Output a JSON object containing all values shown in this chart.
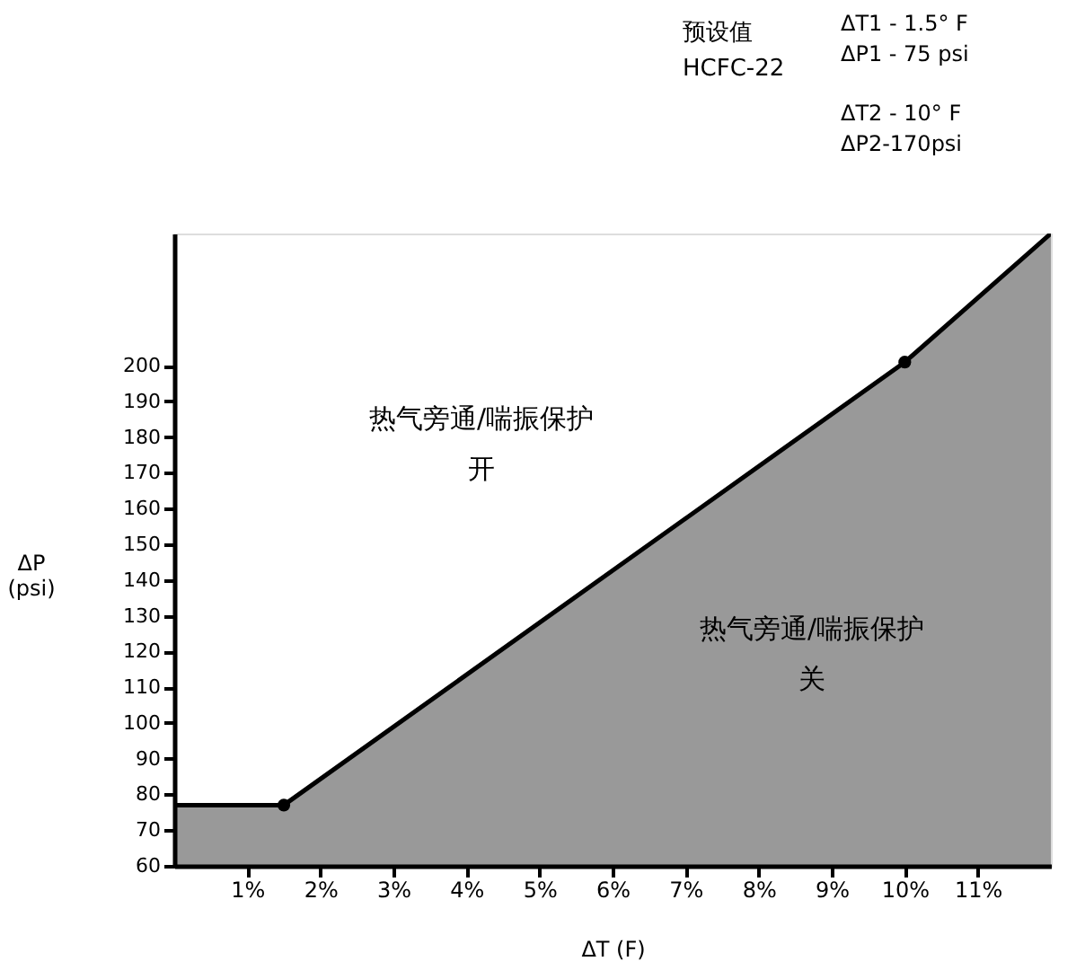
{
  "chart_data": {
    "type": "area",
    "xlabel": "ΔT (F)",
    "ylabel": "ΔP\n(psi)",
    "x": [
      0,
      1.5,
      10,
      12
    ],
    "series": [
      {
        "color": "#000000",
        "values": [
          77,
          77,
          201,
          237
        ]
      },
      {
        "type": "scatter",
        "color": "#000000",
        "marker": "circle",
        "x": [
          1.5,
          10
        ],
        "values": [
          77,
          201
        ]
      }
    ],
    "xlim": [
      0,
      12
    ],
    "ylim": [
      60,
      237
    ],
    "xticks": [
      {
        "value": 1,
        "label": "1%"
      },
      {
        "value": 2,
        "label": "2%"
      },
      {
        "value": 3,
        "label": "3%"
      },
      {
        "value": 4,
        "label": "4%"
      },
      {
        "value": 5,
        "label": "5%"
      },
      {
        "value": 6,
        "label": "6%"
      },
      {
        "value": 7,
        "label": "7%"
      },
      {
        "value": 8,
        "label": "8%"
      },
      {
        "value": 9,
        "label": "9%"
      },
      {
        "value": 10,
        "label": "10%"
      },
      {
        "value": 11,
        "label": "11%"
      }
    ],
    "yticks": [
      60,
      70,
      80,
      90,
      100,
      110,
      120,
      130,
      140,
      150,
      160,
      170,
      180,
      190,
      200
    ],
    "grid": false,
    "annotations": [
      "预设值",
      "HCFC-22",
      "ΔT1 - 1.5° F\nΔP1 - 75 psi",
      "ΔT2 - 10° F\nΔP2-170psi",
      "热气旁通/喘振保护",
      "开",
      "热气旁通/喘振保护",
      "关"
    ]
  }
}
